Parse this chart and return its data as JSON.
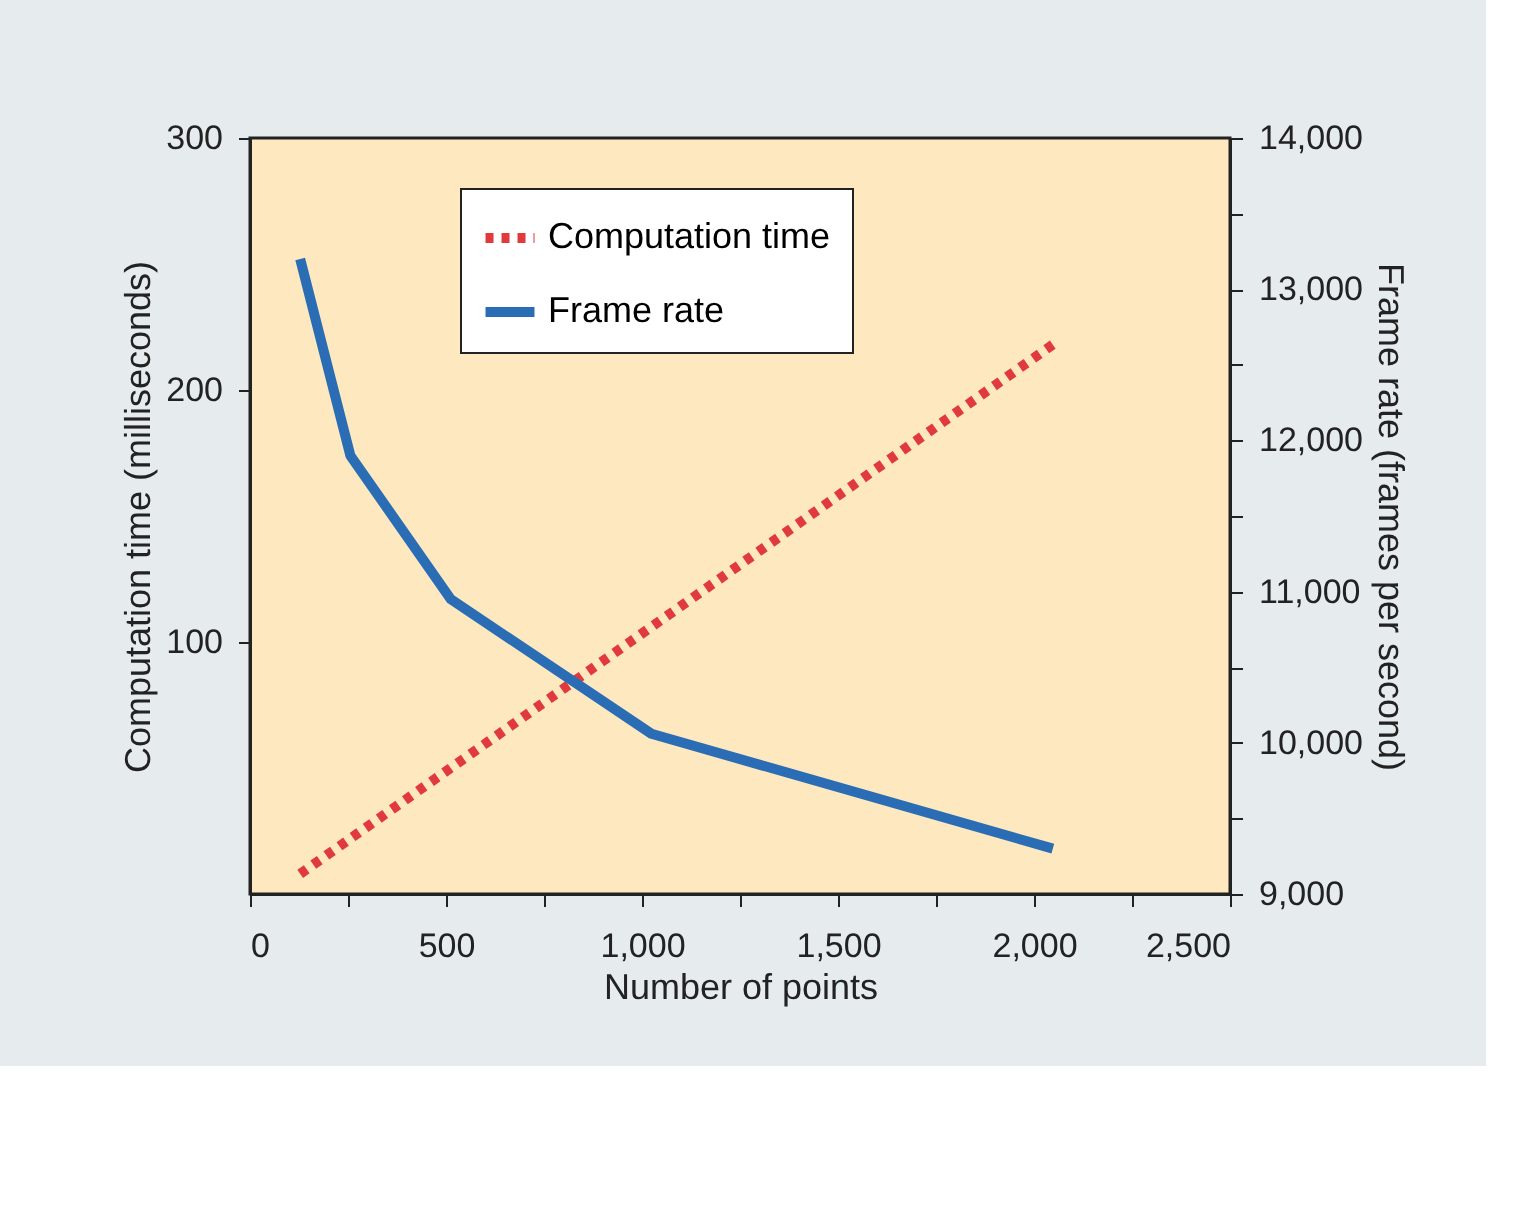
{
  "chart_data": {
    "type": "line",
    "xlabel": "Number of points",
    "ylabel": "Computation time (milliseconds)",
    "y2label": "Frame rate (frames per second)",
    "x": [
      128,
      256,
      512,
      1024,
      2048
    ],
    "series": [
      {
        "name": "Computation time",
        "color": "#e03a3e",
        "values": [
          8,
          22,
          50,
          106,
          218
        ],
        "line_style": "dotted"
      },
      {
        "name": "Frame rate",
        "color": "#2a6db5",
        "values": [
          13200,
          11900,
          10950,
          10060,
          9300
        ],
        "axis": "y2",
        "line_style": "solid"
      }
    ],
    "xlim": [
      0,
      2500
    ],
    "xticks": [
      0,
      {
        "value": 250,
        "label": null
      },
      500,
      {
        "value": 750,
        "label": null
      },
      {
        "value": 1000,
        "label": "1,000"
      },
      {
        "value": 1250,
        "label": null
      },
      {
        "value": 1500,
        "label": "1,500"
      },
      {
        "value": 1750,
        "label": null
      },
      {
        "value": 2000,
        "label": "2,000"
      },
      {
        "value": 2250,
        "label": null
      },
      {
        "value": 2500,
        "label": "2,500"
      }
    ],
    "ylim": [
      0,
      300
    ],
    "yticks": [
      100,
      200,
      300
    ],
    "y2lim": [
      9000,
      14000
    ],
    "y2ticks": [
      {
        "value": 9000,
        "label": "9,000"
      },
      {
        "value": 9500,
        "label": null
      },
      {
        "value": 10000,
        "label": "10,000"
      },
      {
        "value": 10500,
        "label": null
      },
      {
        "value": 11000,
        "label": "11,000"
      },
      {
        "value": 11500,
        "label": null
      },
      {
        "value": 12000,
        "label": "12,000"
      },
      {
        "value": 12500,
        "label": null
      },
      {
        "value": 13000,
        "label": "13,000"
      },
      {
        "value": 13500,
        "label": null
      },
      {
        "value": 14000,
        "label": "14,000"
      }
    ],
    "grid": false,
    "legend": "top",
    "marker": "none"
  }
}
